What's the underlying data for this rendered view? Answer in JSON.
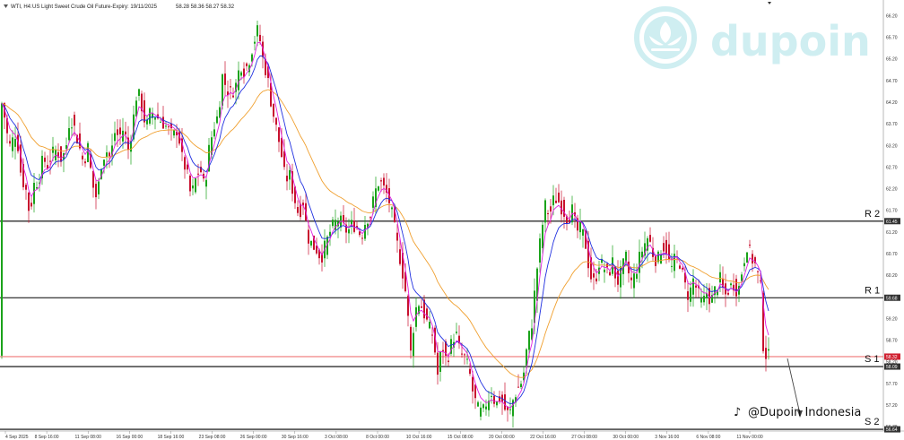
{
  "header": {
    "symbol": "WTI, H4:",
    "instrument": "US Light Sweet Crude Oil Future-Expiry: 19/11/2025",
    "ohlc": "58.28 58.36 58.27 58.32"
  },
  "watermark": {
    "brand": "dupoin",
    "social": "@Dupoin Indonesia"
  },
  "chart_data": {
    "type": "candlestick",
    "ylim": [
      56.6,
      66.56
    ],
    "y_ticks": [
      "66.20",
      "65.70",
      "65.20",
      "64.70",
      "64.20",
      "63.70",
      "63.20",
      "62.70",
      "62.20",
      "61.70",
      "61.20",
      "60.70",
      "60.20",
      "59.70",
      "59.20",
      "58.70",
      "58.20",
      "57.70",
      "57.20",
      "56.70"
    ],
    "x_ticks": [
      "4 Sep 2025",
      "8 Sep 16:00",
      "11 Sep 08:00",
      "16 Sep 00:00",
      "18 Sep 16:00",
      "23 Sep 08:00",
      "26 Sep 00:00",
      "30 Sep 16:00",
      "3 Oct 08:00",
      "8 Oct 00:00",
      "10 Oct 16:00",
      "15 Oct 08:00",
      "20 Oct 00:00",
      "22 Oct 16:00",
      "27 Oct 08:00",
      "30 Oct 00:00",
      "3 Nov 16:00",
      "6 Nov 08:00",
      "11 Nov 00:00"
    ],
    "levels": [
      {
        "label": "R 2",
        "price": 61.45,
        "tag": "61.45"
      },
      {
        "label": "R 1",
        "price": 59.68,
        "tag": "59.68"
      },
      {
        "label": "S 1",
        "price": 58.09,
        "tag": "58.09"
      },
      {
        "label": "S 2",
        "price": 56.64,
        "tag": "56.64"
      }
    ],
    "current_price": {
      "value": 58.32,
      "tag": "58.32"
    },
    "colors": {
      "up": "#1aa31a",
      "down": "#c8102e",
      "ma_fast": "#e020e0",
      "ma_mid": "#2030e0",
      "ma_slow": "#f0a030",
      "level": "#000000",
      "price_line": "#f4a0a0",
      "watermark": "#cfeef1"
    },
    "path": [
      [
        0,
        64.35
      ],
      [
        4,
        64.0
      ],
      [
        8,
        63.45
      ],
      [
        12,
        63.1
      ],
      [
        16,
        63.55
      ],
      [
        20,
        63.2
      ],
      [
        24,
        62.4
      ],
      [
        28,
        62.3
      ],
      [
        33,
        61.6
      ],
      [
        38,
        62.3
      ],
      [
        43,
        62.4
      ],
      [
        48,
        62.9
      ],
      [
        53,
        62.75
      ],
      [
        58,
        63.0
      ],
      [
        63,
        63.1
      ],
      [
        68,
        62.9
      ],
      [
        73,
        63.05
      ],
      [
        78,
        63.9
      ],
      [
        83,
        63.6
      ],
      [
        88,
        63.2
      ],
      [
        93,
        62.8
      ],
      [
        98,
        63.15
      ],
      [
        103,
        62.3
      ],
      [
        108,
        61.95
      ],
      [
        113,
        62.8
      ],
      [
        118,
        63.1
      ],
      [
        123,
        62.9
      ],
      [
        128,
        63.5
      ],
      [
        133,
        63.4
      ],
      [
        138,
        63.6
      ],
      [
        143,
        63.1
      ],
      [
        148,
        63.7
      ],
      [
        153,
        64.5
      ],
      [
        158,
        64.1
      ],
      [
        163,
        63.6
      ],
      [
        168,
        64.0
      ],
      [
        173,
        63.9
      ],
      [
        178,
        63.8
      ],
      [
        183,
        63.7
      ],
      [
        188,
        63.55
      ],
      [
        193,
        63.4
      ],
      [
        198,
        63.6
      ],
      [
        203,
        62.9
      ],
      [
        208,
        62.6
      ],
      [
        213,
        62.0
      ],
      [
        218,
        62.4
      ],
      [
        223,
        62.7
      ],
      [
        228,
        62.2
      ],
      [
        233,
        63.1
      ],
      [
        238,
        63.6
      ],
      [
        243,
        63.9
      ],
      [
        248,
        64.8
      ],
      [
        253,
        64.5
      ],
      [
        258,
        64.4
      ],
      [
        263,
        64.6
      ],
      [
        268,
        65.1
      ],
      [
        273,
        64.9
      ],
      [
        278,
        65.2
      ],
      [
        283,
        65.6
      ],
      [
        288,
        65.9
      ],
      [
        293,
        65.2
      ],
      [
        298,
        64.8
      ],
      [
        303,
        64.1
      ],
      [
        308,
        63.6
      ],
      [
        313,
        63.1
      ],
      [
        318,
        62.4
      ],
      [
        323,
        62.5
      ],
      [
        328,
        62.0
      ],
      [
        333,
        61.6
      ],
      [
        338,
        61.9
      ],
      [
        343,
        61.1
      ],
      [
        348,
        60.9
      ],
      [
        353,
        60.8
      ],
      [
        358,
        60.6
      ],
      [
        363,
        60.9
      ],
      [
        368,
        61.2
      ],
      [
        373,
        61.4
      ],
      [
        378,
        61.5
      ],
      [
        383,
        61.3
      ],
      [
        388,
        61.2
      ],
      [
        393,
        61.4
      ],
      [
        398,
        61.3
      ],
      [
        403,
        61.1
      ],
      [
        408,
        61.5
      ],
      [
        413,
        61.6
      ],
      [
        418,
        62.1
      ],
      [
        423,
        62.4
      ],
      [
        428,
        62.2
      ],
      [
        433,
        62.0
      ],
      [
        438,
        61.5
      ],
      [
        443,
        60.9
      ],
      [
        448,
        60.4
      ],
      [
        453,
        59.7
      ],
      [
        458,
        58.4
      ],
      [
        463,
        59.4
      ],
      [
        468,
        59.6
      ],
      [
        473,
        59.3
      ],
      [
        478,
        59.0
      ],
      [
        483,
        58.8
      ],
      [
        488,
        57.9
      ],
      [
        493,
        58.6
      ],
      [
        498,
        58.2
      ],
      [
        503,
        58.6
      ],
      [
        508,
        58.9
      ],
      [
        513,
        58.4
      ],
      [
        518,
        58.3
      ],
      [
        523,
        58.0
      ],
      [
        528,
        57.4
      ],
      [
        533,
        57.1
      ],
      [
        538,
        57.0
      ],
      [
        543,
        57.3
      ],
      [
        548,
        57.5
      ],
      [
        553,
        57.2
      ],
      [
        558,
        57.4
      ],
      [
        563,
        57.1
      ],
      [
        568,
        56.95
      ],
      [
        573,
        57.4
      ],
      [
        578,
        57.6
      ],
      [
        583,
        57.8
      ],
      [
        588,
        58.6
      ],
      [
        593,
        59.1
      ],
      [
        598,
        60.2
      ],
      [
        603,
        61.1
      ],
      [
        608,
        61.8
      ],
      [
        613,
        61.6
      ],
      [
        618,
        62.0
      ],
      [
        623,
        61.9
      ],
      [
        628,
        61.7
      ],
      [
        633,
        61.5
      ],
      [
        638,
        61.7
      ],
      [
        643,
        61.2
      ],
      [
        648,
        61.3
      ],
      [
        653,
        60.9
      ],
      [
        658,
        60.2
      ],
      [
        663,
        60.0
      ],
      [
        668,
        60.5
      ],
      [
        673,
        60.4
      ],
      [
        678,
        60.2
      ],
      [
        683,
        60.5
      ],
      [
        688,
        60.0
      ],
      [
        693,
        60.3
      ],
      [
        698,
        60.6
      ],
      [
        703,
        60.0
      ],
      [
        708,
        60.2
      ],
      [
        713,
        60.6
      ],
      [
        718,
        60.9
      ],
      [
        723,
        61.1
      ],
      [
        728,
        60.7
      ],
      [
        733,
        60.5
      ],
      [
        738,
        60.9
      ],
      [
        743,
        60.8
      ],
      [
        748,
        60.3
      ],
      [
        753,
        60.6
      ],
      [
        758,
        60.5
      ],
      [
        763,
        60.0
      ],
      [
        768,
        59.7
      ],
      [
        773,
        60.1
      ],
      [
        778,
        59.8
      ],
      [
        783,
        59.5
      ],
      [
        788,
        59.8
      ],
      [
        793,
        59.6
      ],
      [
        798,
        59.9
      ],
      [
        803,
        60.1
      ],
      [
        808,
        59.7
      ],
      [
        813,
        59.9
      ],
      [
        818,
        60.0
      ],
      [
        823,
        59.8
      ],
      [
        828,
        60.4
      ],
      [
        833,
        60.9
      ],
      [
        838,
        60.6
      ],
      [
        843,
        60.4
      ],
      [
        848,
        59.9
      ],
      [
        850,
        58.7
      ],
      [
        853,
        58.4
      ],
      [
        856,
        58.32
      ]
    ]
  }
}
